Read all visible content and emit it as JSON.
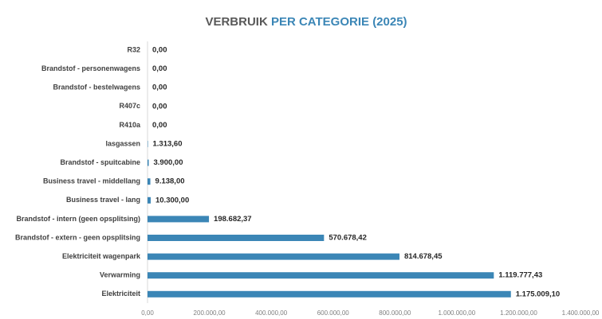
{
  "chart_data": {
    "type": "hbar",
    "title": [
      "VERBRUIK",
      "PER CATEGORIE (2025)"
    ],
    "categories": [
      "R32",
      "Brandstof - personenwagens",
      "Brandstof - bestelwagens",
      "R407c",
      "R410a",
      "lasgassen",
      "Brandstof - spuitcabine",
      "Business travel - middellang",
      "Business travel - lang",
      "Brandstof - intern (geen opsplitsing)",
      "Brandstof - extern - geen opsplitsing",
      "Elektriciteit wagenpark",
      "Verwarming",
      "Elektriciteit"
    ],
    "values": [
      0,
      0,
      0,
      0,
      0,
      1313.6,
      3900,
      9138,
      10300,
      198682.37,
      570678.42,
      814678.45,
      1119777.43,
      1175009.1
    ],
    "value_labels": [
      "0,00",
      "0,00",
      "0,00",
      "0,00",
      "0,00",
      "1.313,60",
      "3.900,00",
      "9.138,00",
      "10.300,00",
      "198.682,37",
      "570.678,42",
      "814.678,45",
      "1.119.777,43",
      "1.175.009,10"
    ],
    "color": "#3b86b6",
    "xlim": [
      0,
      1400000
    ],
    "xticks": [
      {
        "value": 0,
        "label": "0,00"
      },
      {
        "value": 200000,
        "label": "200.000,00"
      },
      {
        "value": 400000,
        "label": "400.000,00"
      },
      {
        "value": 600000,
        "label": "600.000,00"
      },
      {
        "value": 800000,
        "label": "800.000,00"
      },
      {
        "value": 1000000,
        "label": "1.000.000,00"
      },
      {
        "value": 1200000,
        "label": "1.200.000,00"
      },
      {
        "value": 1400000,
        "label": "1.400.000,00"
      }
    ],
    "grid": false
  }
}
